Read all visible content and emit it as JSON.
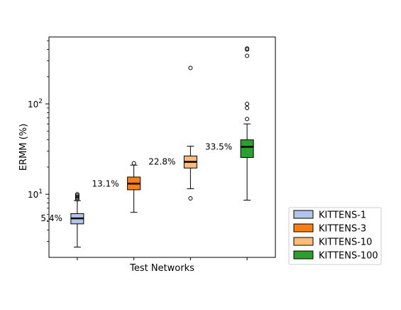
{
  "chart_data": {
    "type": "box",
    "title": "",
    "xlabel": "Test Networks",
    "ylabel": "ERMM (%)",
    "yscale": "log",
    "ylim": [
      2.0,
      550
    ],
    "y_ticks": [
      {
        "value": 10,
        "label": "10",
        "exp": "1"
      },
      {
        "value": 100,
        "label": "10",
        "exp": "2"
      }
    ],
    "grid": false,
    "legend_position": "outside-right-bottom",
    "series": [
      {
        "name": "KITTENS-1",
        "color": "#aec7e8",
        "median": 5.4,
        "q1": 4.7,
        "q3": 6.1,
        "whisker_low": 2.6,
        "whisker_high": 8.5,
        "outliers": [
          8.8,
          9.1,
          9.4,
          9.7,
          10.0
        ],
        "median_label": "5.4%"
      },
      {
        "name": "KITTENS-3",
        "color": "#ff7f0e",
        "median": 13.1,
        "q1": 11.2,
        "q3": 15.5,
        "whisker_low": 6.3,
        "whisker_high": 21.0,
        "outliers": [
          22.0
        ],
        "median_label": "13.1%"
      },
      {
        "name": "KITTENS-10",
        "color": "#ffbb78",
        "median": 22.8,
        "q1": 19.5,
        "q3": 26.5,
        "whisker_low": 11.5,
        "whisker_high": 34.0,
        "outliers": [
          9.0,
          250.0
        ],
        "median_label": "22.8%"
      },
      {
        "name": "KITTENS-100",
        "color": "#2ca02c",
        "median": 33.5,
        "q1": 25.5,
        "q3": 40.0,
        "whisker_low": 8.6,
        "whisker_high": 60.0,
        "outliers": [
          68.0,
          90.0,
          100.0,
          340.0,
          400.0,
          410.0
        ],
        "median_label": "33.5%"
      }
    ]
  }
}
